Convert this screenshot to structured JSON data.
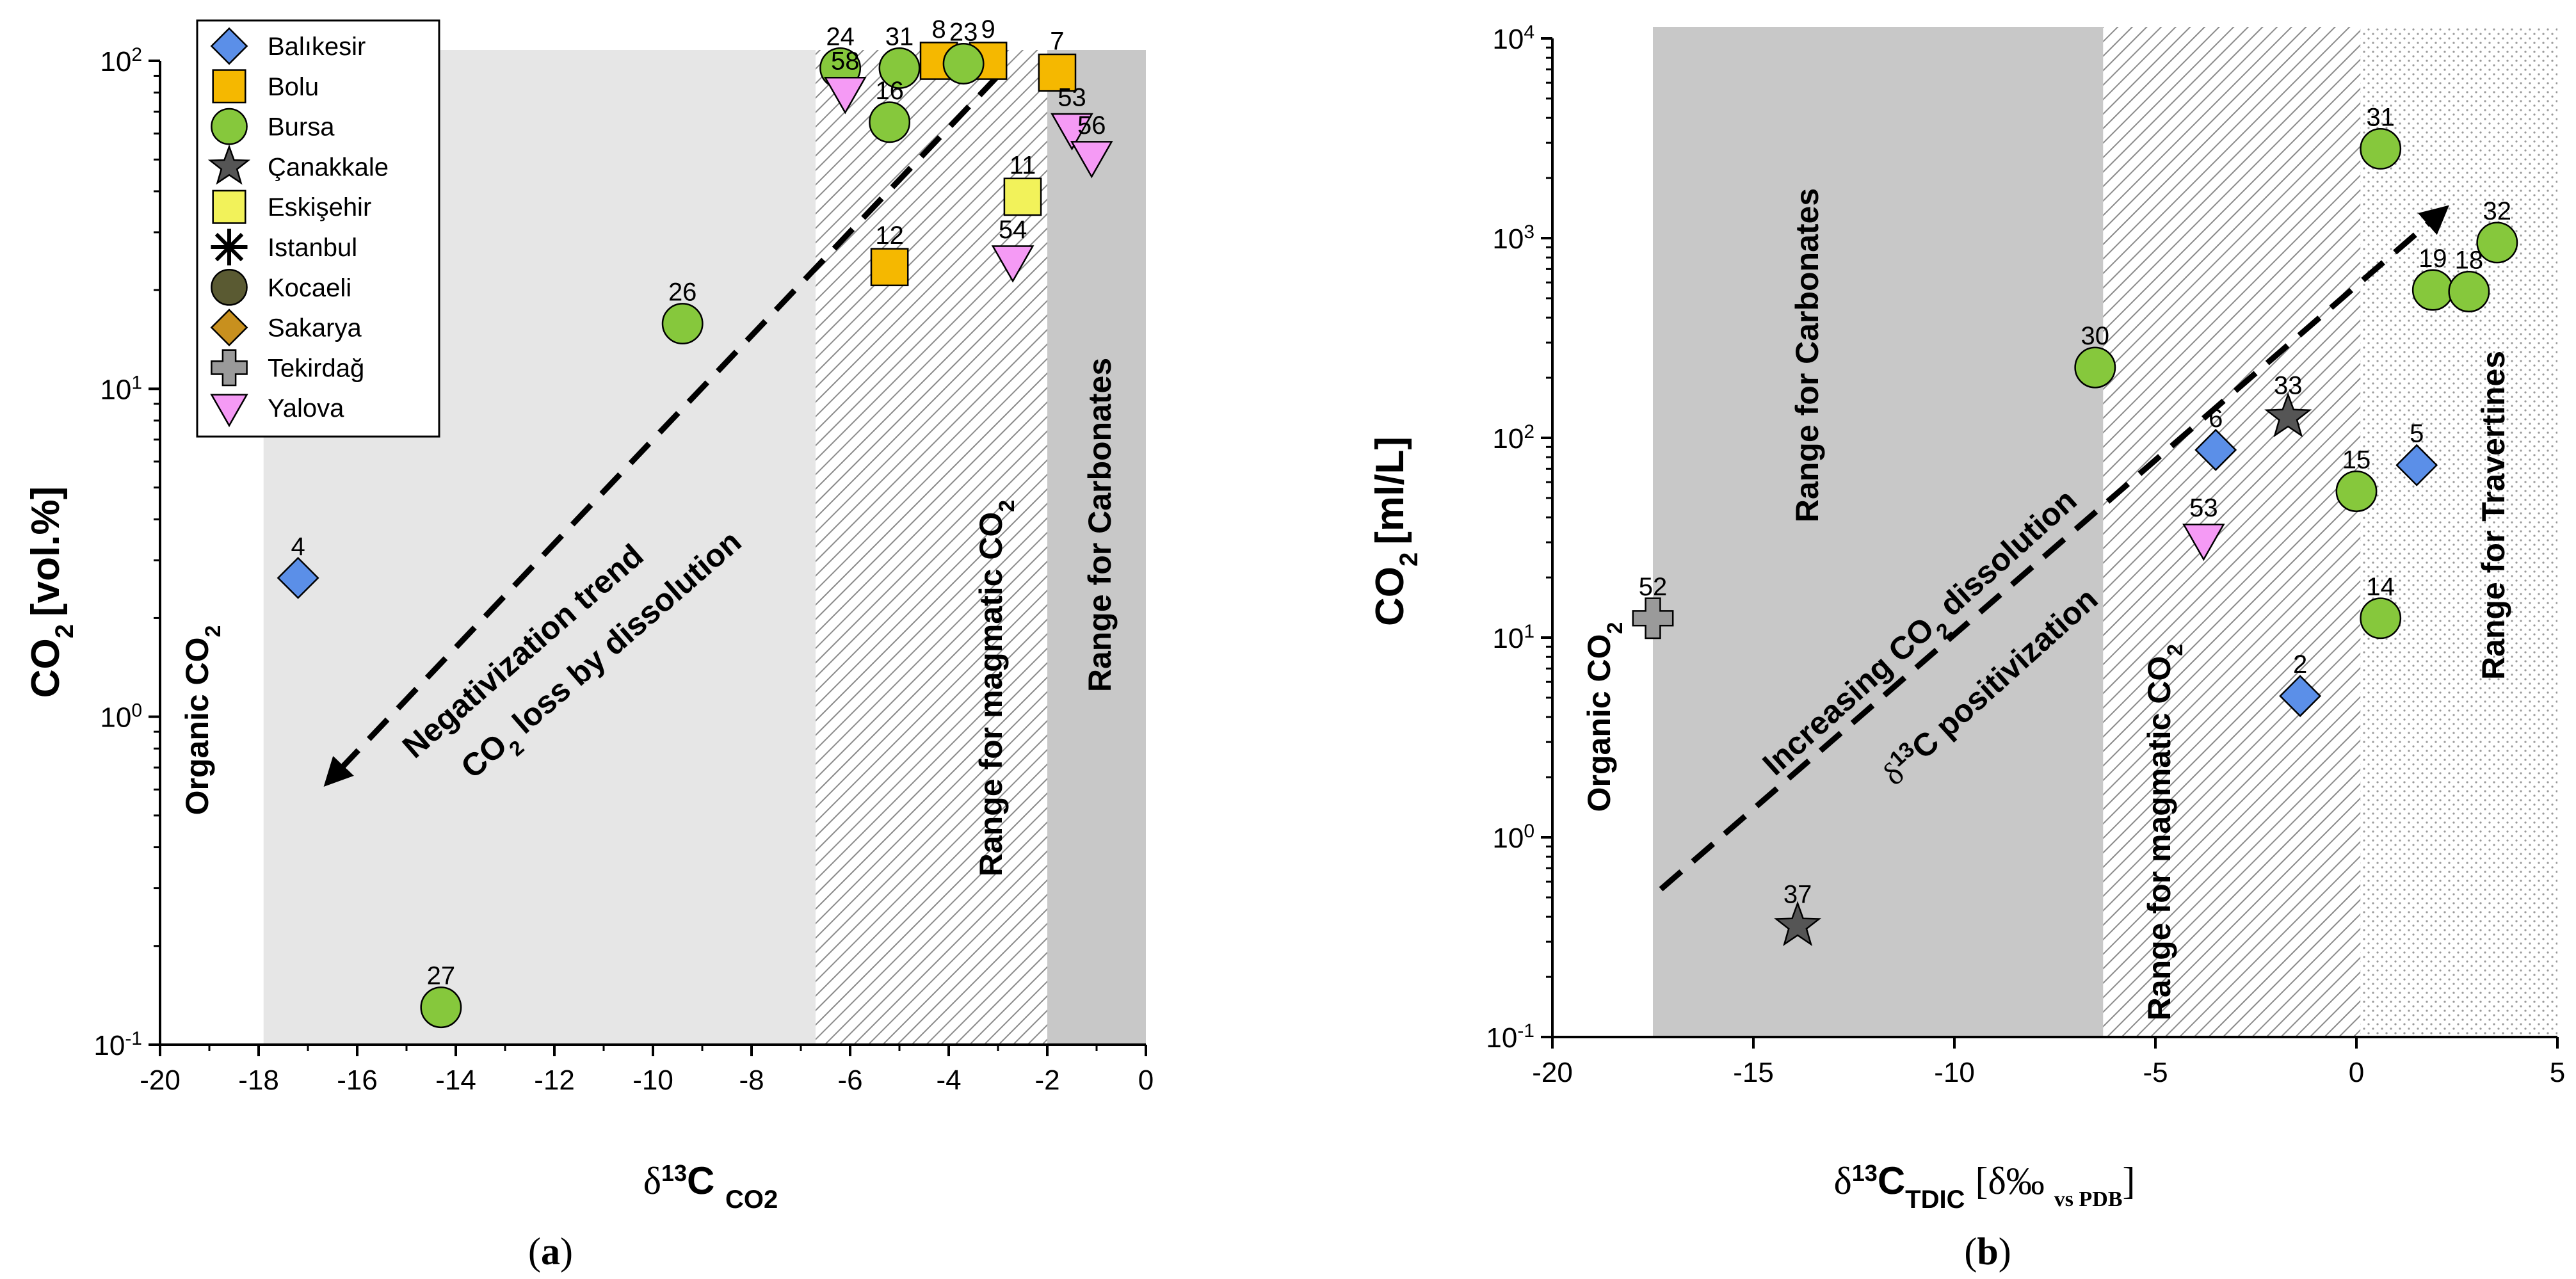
{
  "legend": [
    {
      "id": "balikesir",
      "label": "Balıkesir",
      "marker": "diamond",
      "color": "#5b8fe8"
    },
    {
      "id": "bolu",
      "label": "Bolu",
      "marker": "square",
      "color": "#f5b800"
    },
    {
      "id": "bursa",
      "label": "Bursa",
      "marker": "circle",
      "color": "#86c83c"
    },
    {
      "id": "canakkale",
      "label": "Çanakkale",
      "marker": "star",
      "color": "#555555"
    },
    {
      "id": "eskisehir",
      "label": "Eskişehir",
      "marker": "square",
      "color": "#f2f25a"
    },
    {
      "id": "istanbul",
      "label": "Istanbul",
      "marker": "asterisk",
      "color": "#000000"
    },
    {
      "id": "kocaeli",
      "label": "Kocaeli",
      "marker": "circle",
      "color": "#5a5a32"
    },
    {
      "id": "sakarya",
      "label": "Sakarya",
      "marker": "diamond",
      "color": "#c8901e"
    },
    {
      "id": "tekirdag",
      "label": "Tekirdağ",
      "marker": "cross",
      "color": "#9a9a9a"
    },
    {
      "id": "yalova",
      "label": "Yalova",
      "marker": "triangle-down",
      "color": "#f59af5"
    }
  ],
  "chart_data": [
    {
      "type": "scatter",
      "caption": "(a)",
      "caption_letter": "a",
      "title": "",
      "xlabel_sub": "CO2",
      "ylabel_sub": "2",
      "ylabel_unit": "[vol.%]",
      "x_scale": "linear",
      "y_scale": "log",
      "xlim": [
        -20,
        0
      ],
      "ylim": [
        0.1,
        100
      ],
      "x_ticks": [
        -20,
        -18,
        -16,
        -14,
        -12,
        -10,
        -8,
        -6,
        -4,
        -2,
        0
      ],
      "y_ticks": [
        0.1,
        1,
        10,
        100
      ],
      "y_tick_labels": [
        {
          "base": "10",
          "exp": "-1"
        },
        {
          "base": "10",
          "exp": "0"
        },
        {
          "base": "10",
          "exp": "1"
        },
        {
          "base": "10",
          "exp": "2"
        }
      ],
      "regions": [
        {
          "name": "Organic CO2",
          "label": "Organic CO",
          "sub": "2",
          "x": [
            -17.9,
            -6.7
          ],
          "fill": "light-gray"
        },
        {
          "name": "Range for magmatic CO2",
          "label": "Range for magmatic CO",
          "sub": "2",
          "x": [
            -6.7,
            -2.0
          ],
          "fill": "hatched"
        },
        {
          "name": "Range for Carbonates",
          "label": "Range for Carbonates",
          "sub": "",
          "x": [
            -2.0,
            0
          ],
          "fill": "gray"
        }
      ],
      "trend_line": {
        "from": [
          -3.0,
          90
        ],
        "to": [
          -16.6,
          0.63
        ],
        "arrow_at": "end"
      },
      "annotations": [
        {
          "text": "Negativization trend",
          "sub": "",
          "tail": ""
        },
        {
          "text": "CO",
          "sub": "2",
          "tail": " loss by dissolution"
        }
      ],
      "series": [
        {
          "name": "Balıkesir",
          "points": [
            {
              "x": -17.2,
              "y": 2.65,
              "label": "4"
            }
          ]
        },
        {
          "name": "Bolu",
          "points": [
            {
              "x": -4.2,
              "y": 100,
              "label": "8"
            },
            {
              "x": -3.2,
              "y": 100,
              "label": "9"
            },
            {
              "x": -1.8,
              "y": 92,
              "label": "7"
            },
            {
              "x": -5.2,
              "y": 23.5,
              "label": "12"
            }
          ]
        },
        {
          "name": "Bursa",
          "points": [
            {
              "x": -6.2,
              "y": 95,
              "label": "24"
            },
            {
              "x": -5.0,
              "y": 95,
              "label": "31"
            },
            {
              "x": -3.7,
              "y": 98,
              "label": "23"
            },
            {
              "x": -5.2,
              "y": 65,
              "label": "16"
            },
            {
              "x": -9.4,
              "y": 15.8,
              "label": "26"
            },
            {
              "x": -14.3,
              "y": 0.13,
              "label": "27"
            }
          ]
        },
        {
          "name": "Eskişehir",
          "points": [
            {
              "x": -2.5,
              "y": 38.5,
              "label": "11"
            }
          ]
        },
        {
          "name": "Yalova",
          "points": [
            {
              "x": -6.1,
              "y": 80,
              "label": "58"
            },
            {
              "x": -1.5,
              "y": 62,
              "label": "53"
            },
            {
              "x": -1.1,
              "y": 51,
              "label": "56"
            },
            {
              "x": -2.7,
              "y": 24.5,
              "label": "54"
            }
          ]
        }
      ]
    },
    {
      "type": "scatter",
      "caption": "(b)",
      "caption_letter": "b",
      "title": "",
      "xlabel_main": "TDIC",
      "xlabel_bracket": "[δ‰ ",
      "xlabel_small": "vs PDB",
      "ylabel_sub": "2",
      "ylabel_unit": "[ml/L]",
      "x_scale": "linear",
      "y_scale": "log",
      "xlim": [
        -20,
        5
      ],
      "ylim": [
        0.1,
        10000
      ],
      "x_ticks": [
        -20,
        -15,
        -10,
        -5,
        0,
        5
      ],
      "y_ticks": [
        0.1,
        1,
        10,
        100,
        1000,
        10000
      ],
      "y_tick_labels": [
        {
          "base": "10",
          "exp": "-1"
        },
        {
          "base": "10",
          "exp": "0"
        },
        {
          "base": "10",
          "exp": "1"
        },
        {
          "base": "10",
          "exp": "2"
        },
        {
          "base": "10",
          "exp": "3"
        },
        {
          "base": "10",
          "exp": "4"
        }
      ],
      "regions": [
        {
          "name": "Organic CO2",
          "label": "Organic CO",
          "sub": "2",
          "x": [
            -20,
            -17.5
          ],
          "fill": "white"
        },
        {
          "name": "Range for Carbonates",
          "label": "Range for Carbonates",
          "sub": "",
          "x": [
            -17.5,
            -6.3
          ],
          "fill": "gray"
        },
        {
          "name": "Range for magmatic CO2",
          "label": "Range for magmatic CO",
          "sub": "2",
          "x": [
            -6.3,
            0.1
          ],
          "fill": "hatched"
        },
        {
          "name": "Range for Travertines",
          "label": "Range for Travertines",
          "sub": "",
          "x": [
            0.1,
            5
          ],
          "fill": "dotted"
        }
      ],
      "trend_line": {
        "from": [
          -17.3,
          0.55
        ],
        "to": [
          2.2,
          1400
        ],
        "arrow_at": "end"
      },
      "annotations": [
        {
          "text": "Increasing CO",
          "sub": "2",
          "tail": " dissolution"
        },
        {
          "text": "δ",
          "sup": "13",
          "tail": "C positivization"
        }
      ],
      "series": [
        {
          "name": "Balıkesir",
          "points": [
            {
              "x": -3.5,
              "y": 87,
              "label": "6"
            },
            {
              "x": 1.5,
              "y": 73,
              "label": "5"
            },
            {
              "x": -1.4,
              "y": 5.1,
              "label": "2"
            }
          ]
        },
        {
          "name": "Bursa",
          "points": [
            {
              "x": 0.6,
              "y": 2800,
              "label": "31"
            },
            {
              "x": 3.5,
              "y": 950,
              "label": "32"
            },
            {
              "x": 1.9,
              "y": 550,
              "label": "19"
            },
            {
              "x": 2.8,
              "y": 540,
              "label": "18"
            },
            {
              "x": -6.5,
              "y": 225,
              "label": "30"
            },
            {
              "x": 0.0,
              "y": 54,
              "label": "15"
            },
            {
              "x": 0.6,
              "y": 12.5,
              "label": "14"
            }
          ]
        },
        {
          "name": "Çanakkale",
          "points": [
            {
              "x": -1.7,
              "y": 127,
              "label": "33"
            },
            {
              "x": -13.9,
              "y": 0.36,
              "label": "37"
            }
          ]
        },
        {
          "name": "Tekirdağ",
          "points": [
            {
              "x": -17.5,
              "y": 12.5,
              "label": "52"
            }
          ]
        },
        {
          "name": "Yalova",
          "points": [
            {
              "x": -3.8,
              "y": 31,
              "label": "53"
            }
          ]
        }
      ]
    }
  ]
}
